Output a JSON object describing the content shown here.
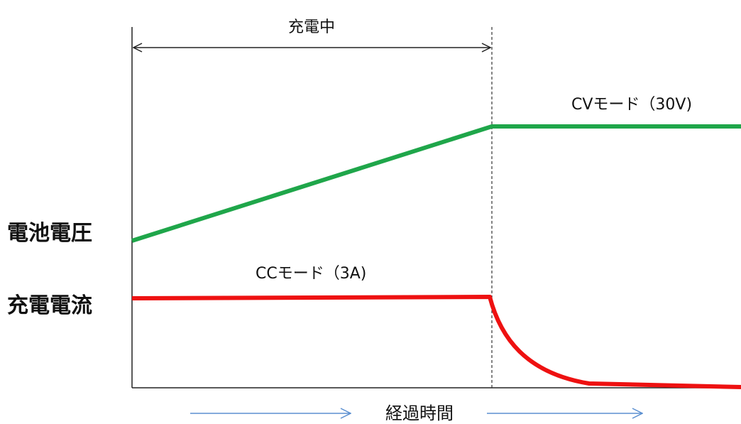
{
  "diagram": {
    "charging_label": "充電中",
    "voltage_label": "電池電圧",
    "current_label": "充電電流",
    "cv_label": "CVモード（30V)",
    "cc_label": "CCモード（3A)",
    "time_label": "経過時間"
  },
  "colors": {
    "voltage": "#1fa64a",
    "current": "#ee1111",
    "axis": "#222222",
    "time_arrow": "#5b8fd0",
    "dashed": "#333333"
  }
}
